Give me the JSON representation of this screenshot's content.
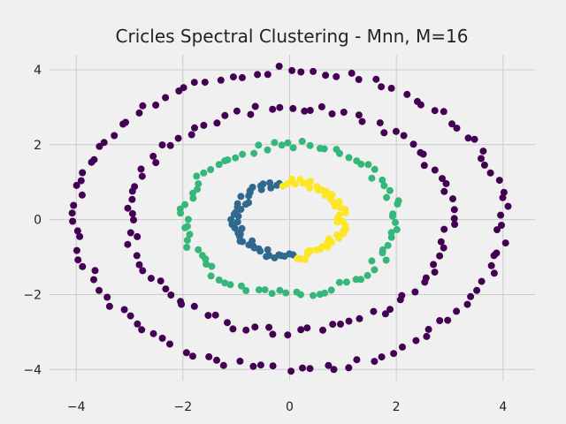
{
  "chart_data": {
    "type": "scatter",
    "title": "Cricles Spectral Clustering - Mnn, M=16",
    "xlabel": "",
    "ylabel": "",
    "xlim": [
      -4.5,
      4.6
    ],
    "ylim": [
      -4.3,
      4.4
    ],
    "xticks": [
      -4,
      -2,
      0,
      2,
      4
    ],
    "yticks": [
      -4,
      -2,
      0,
      2,
      4
    ],
    "xtick_labels": [
      "−4",
      "−2",
      "0",
      "2",
      "4"
    ],
    "ytick_labels": [
      "−4",
      "−2",
      "0",
      "2",
      "4"
    ],
    "grid": true,
    "background": "#f0f0f0",
    "series": [
      {
        "color": "#440154",
        "shape": "circle",
        "cx": 0,
        "cy": 0,
        "r": 4.0,
        "theta_start": 0,
        "theta_end": 360,
        "n": 110
      },
      {
        "color": "#440154",
        "shape": "circle",
        "cx": 0,
        "cy": 0,
        "r": 3.0,
        "theta_start": 0,
        "theta_end": 360,
        "n": 90
      },
      {
        "color": "#35b779",
        "shape": "circle",
        "cx": 0,
        "cy": 0,
        "r": 2.0,
        "theta_start": 0,
        "theta_end": 360,
        "n": 85
      },
      {
        "color": "#31688e",
        "shape": "arc",
        "cx": 0,
        "cy": 0,
        "r": 1.0,
        "theta_start": 100,
        "theta_end": 275,
        "n": 45
      },
      {
        "color": "#fde725",
        "shape": "arc",
        "cx": 0,
        "cy": 0,
        "r": 1.0,
        "theta_start": -85,
        "theta_end": 100,
        "n": 45
      }
    ]
  }
}
